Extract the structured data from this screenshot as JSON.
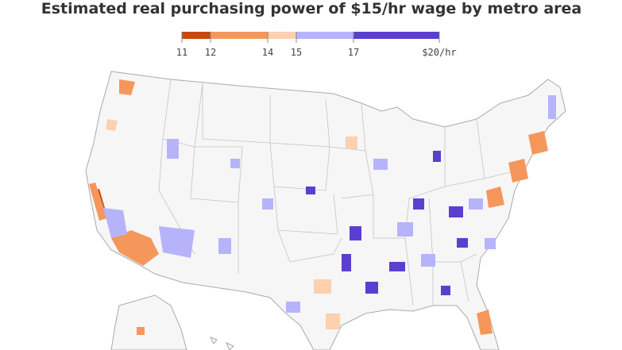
{
  "title": "Estimated real purchasing power of $15/hr wage by metro area",
  "legend": {
    "breaks": [
      11,
      12,
      14,
      15,
      17,
      {
        "value": 20,
        "label": "$20/hr"
      }
    ],
    "colors": [
      "#c9490f",
      "#f5975a",
      "#fdd0b0",
      "#b7b3fb",
      "#5b3fd0"
    ]
  }
}
